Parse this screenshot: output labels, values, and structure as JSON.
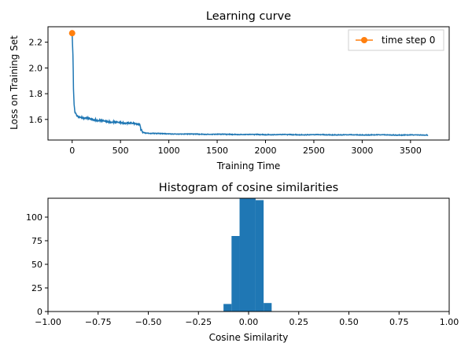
{
  "chart_data": [
    {
      "type": "line",
      "title": "Learning curve",
      "xlabel": "Training Time",
      "ylabel": "Loss on Training Set",
      "xlim": [
        -250,
        3900
      ],
      "ylim": [
        1.44,
        2.32
      ],
      "xticks": [
        0,
        500,
        1000,
        1500,
        2000,
        2500,
        3000,
        3500
      ],
      "yticks": [
        1.6,
        1.8,
        2.0,
        2.2
      ],
      "series": [
        {
          "values": [
            [
              0,
              2.27
            ],
            [
              8,
              2.1
            ],
            [
              14,
              1.84
            ],
            [
              20,
              1.72
            ],
            [
              28,
              1.66
            ],
            [
              40,
              1.64
            ],
            [
              60,
              1.625
            ],
            [
              100,
              1.615
            ],
            [
              150,
              1.61
            ],
            [
              200,
              1.6
            ],
            [
              250,
              1.595
            ],
            [
              300,
              1.59
            ],
            [
              350,
              1.585
            ],
            [
              400,
              1.58
            ],
            [
              450,
              1.578
            ],
            [
              500,
              1.575
            ],
            [
              550,
              1.573
            ],
            [
              600,
              1.57
            ],
            [
              650,
              1.568
            ],
            [
              700,
              1.565
            ],
            [
              710,
              1.52
            ],
            [
              730,
              1.5
            ],
            [
              760,
              1.495
            ],
            [
              800,
              1.492
            ],
            [
              900,
              1.49
            ],
            [
              1000,
              1.488
            ],
            [
              1200,
              1.486
            ],
            [
              1400,
              1.485
            ],
            [
              1600,
              1.484
            ],
            [
              1800,
              1.483
            ],
            [
              2000,
              1.482
            ],
            [
              2200,
              1.482
            ],
            [
              2400,
              1.481
            ],
            [
              2600,
              1.481
            ],
            [
              2800,
              1.48
            ],
            [
              3000,
              1.48
            ],
            [
              3200,
              1.48
            ],
            [
              3400,
              1.479
            ],
            [
              3680,
              1.479
            ]
          ],
          "color": "#1f77b4"
        },
        {
          "name": "time step 0",
          "values": [
            [
              0,
              2.27
            ]
          ],
          "color": "#ff7f0e",
          "marker": "circle"
        }
      ],
      "legend": "top-right",
      "grid": false
    },
    {
      "type": "bar",
      "title": "Histogram of cosine similarities",
      "xlabel": "Cosine Similarity",
      "ylabel": "",
      "xlim": [
        -1.0,
        1.0
      ],
      "ylim": [
        0,
        120
      ],
      "xticks": [
        "−1.00",
        "−0.75",
        "−0.50",
        "−0.25",
        "0.00",
        "0.25",
        "0.50",
        "0.75",
        "1.00"
      ],
      "yticks": [
        0,
        25,
        50,
        75,
        100
      ],
      "bins": [
        [
          -0.125,
          -0.085,
          8
        ],
        [
          -0.085,
          -0.045,
          80
        ],
        [
          -0.045,
          0.0,
          120
        ],
        [
          0.0,
          0.035,
          120
        ],
        [
          0.035,
          0.075,
          118
        ],
        [
          0.075,
          0.115,
          9
        ]
      ],
      "color": "#1f77b4",
      "grid": false
    }
  ]
}
